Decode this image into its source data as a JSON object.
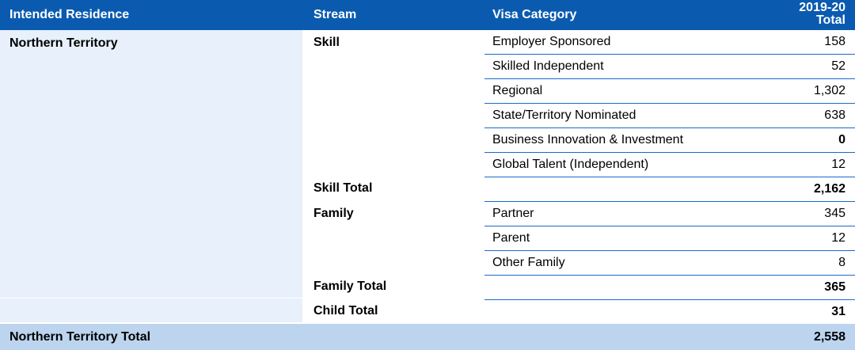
{
  "header": {
    "intended_residence": "Intended Residence",
    "stream": "Stream",
    "visa_category": "Visa Category",
    "total_line1": "2019-20",
    "total_line2": "Total"
  },
  "residence": "Northern Territory",
  "streams": {
    "skill": "Skill",
    "skill_total": "Skill Total",
    "family": "Family",
    "family_total": "Family Total",
    "child_total": "Child Total"
  },
  "rows": [
    {
      "category": "Employer Sponsored",
      "value": "158"
    },
    {
      "category": "Skilled Independent",
      "value": "52"
    },
    {
      "category": "Regional",
      "value": "1,302"
    },
    {
      "category": "State/Territory Nominated",
      "value": "638"
    },
    {
      "category": "Business Innovation & Investment",
      "value": "0"
    },
    {
      "category": "Global Talent (Independent)",
      "value": "12"
    },
    {
      "category": "",
      "value": "2,162"
    },
    {
      "category": "Partner",
      "value": "345"
    },
    {
      "category": "Parent",
      "value": "12"
    },
    {
      "category": "Other Family",
      "value": "8"
    },
    {
      "category": "",
      "value": "365"
    },
    {
      "category": "",
      "value": "31"
    }
  ],
  "grand_total": {
    "label": "Northern Territory Total",
    "value": "2,558"
  }
}
